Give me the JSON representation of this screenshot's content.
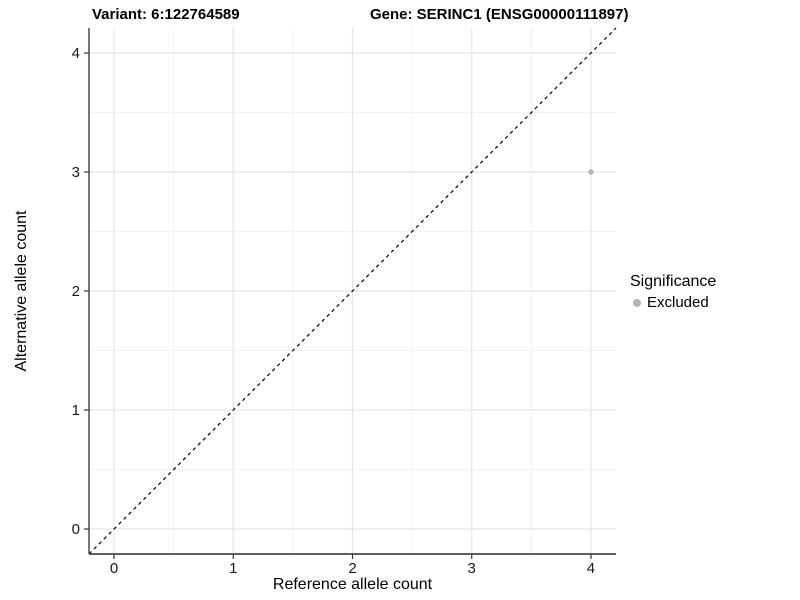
{
  "header": {
    "variant_title": "Variant: 6:122764589",
    "gene_title": "Gene: SERINC1 (ENSG00000111897)"
  },
  "chart_data": {
    "type": "scatter",
    "title": "Variant: 6:122764589 / Gene: SERINC1 (ENSG00000111897)",
    "xlabel": "Reference allele count",
    "ylabel": "Alternative allele count",
    "xlim": [
      -0.21,
      4.21
    ],
    "ylim": [
      -0.21,
      4.21
    ],
    "x_ticks": [
      0,
      1,
      2,
      3,
      4
    ],
    "y_ticks": [
      0,
      1,
      2,
      3,
      4
    ],
    "x_minor_ticks": [
      0.5,
      1.5,
      2.5,
      3.5
    ],
    "y_minor_ticks": [
      0.5,
      1.5,
      2.5,
      3.5
    ],
    "grid": "major+minor",
    "identity_line": {
      "equation": "y = x",
      "style": "dashed",
      "color": "#000000"
    },
    "series": [
      {
        "name": "Excluded",
        "color": "#b4b4b4",
        "points": [
          {
            "x": 4,
            "y": 3
          }
        ]
      }
    ],
    "legend": {
      "title": "Significance",
      "position": "right",
      "items": [
        {
          "label": "Excluded",
          "color": "#b4b4b4",
          "marker": "circle"
        }
      ]
    },
    "style": {
      "grid_major_color": "#e5e5e5",
      "grid_minor_color": "#f2f2f2",
      "axis_line_color": "#4a4a4a",
      "tick_color": "#333333",
      "tick_label_color": "#1a1a1a"
    }
  }
}
